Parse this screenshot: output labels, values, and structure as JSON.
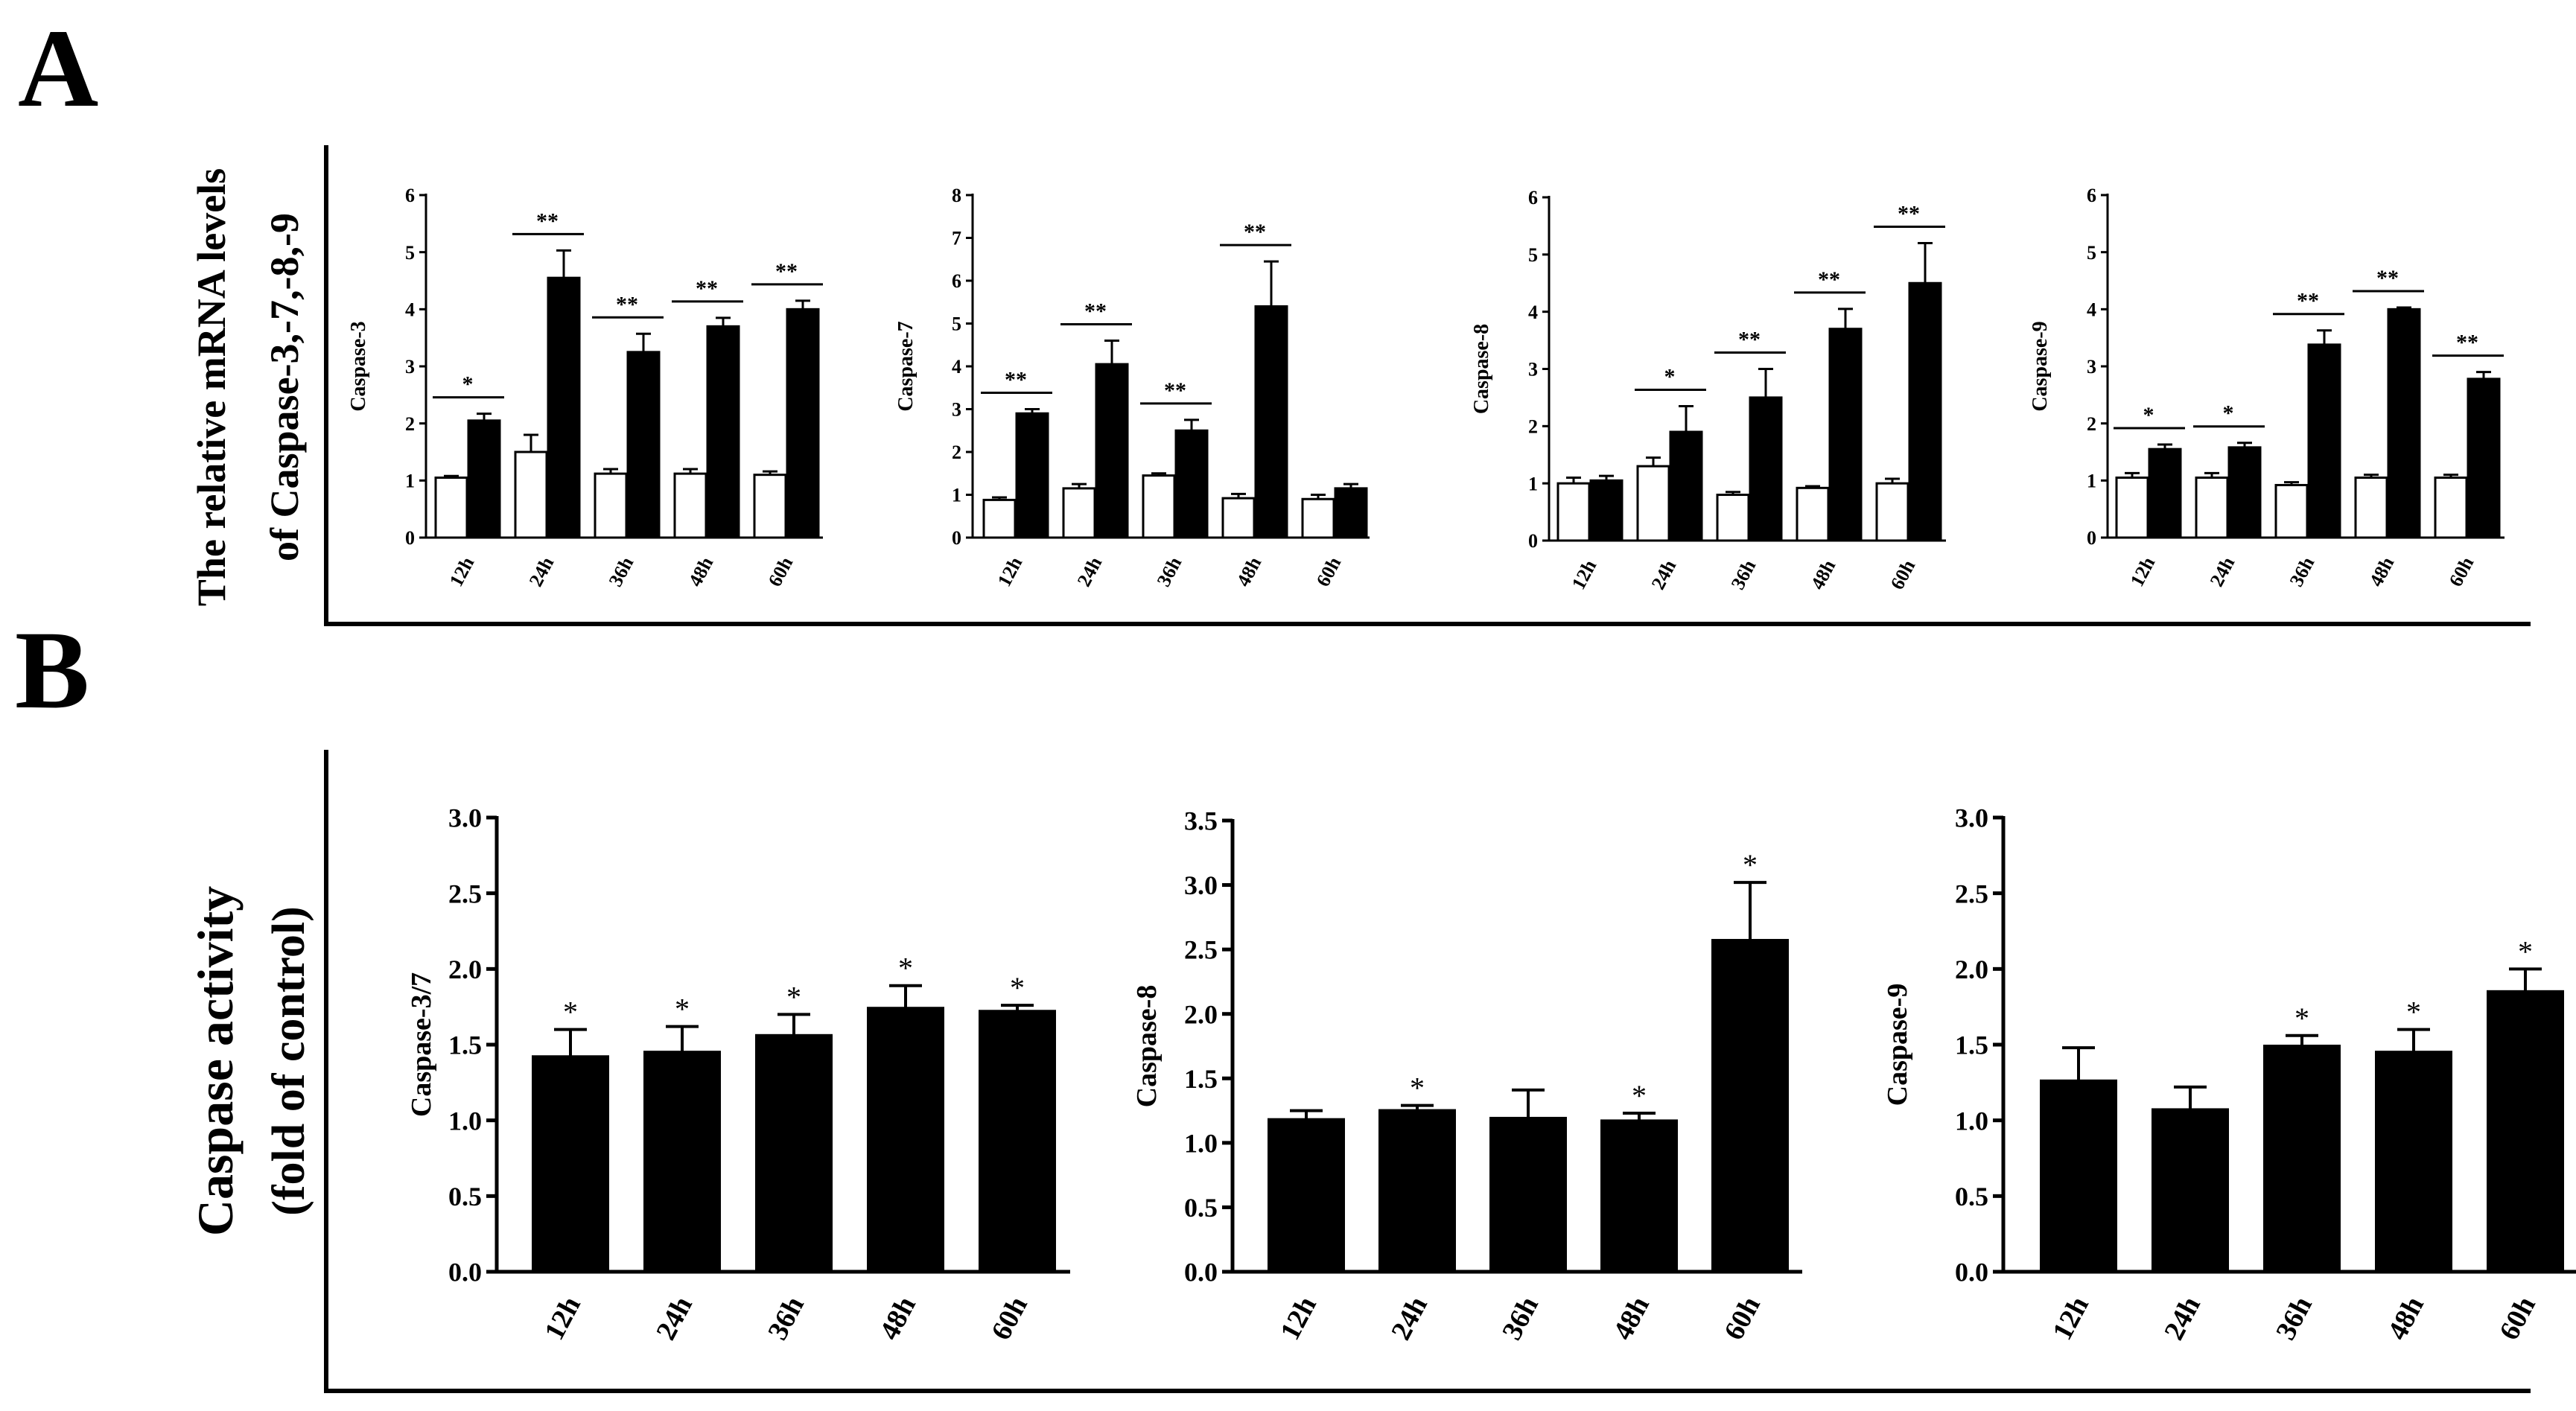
{
  "panels": {
    "a_letter": "A",
    "b_letter": "B",
    "a_ylabel_line1": "The relative mRNA levels",
    "a_ylabel_line2": "of Caspase-3,-7,-8,-9",
    "b_ylabel_line1": "Caspase activity",
    "b_ylabel_line2": "(fold of control)"
  },
  "colors": {
    "control": "#ffffff",
    "treated": "#000000",
    "axis": "#000000"
  },
  "chart_data": [
    {
      "type": "bar",
      "panel": "A",
      "ylabel": "Caspase-3",
      "categories": [
        "12h",
        "24h",
        "36h",
        "48h",
        "60h"
      ],
      "ylim": [
        0,
        6
      ],
      "yticks": [
        "0",
        "1",
        "2",
        "3",
        "4",
        "5",
        "6"
      ],
      "series": [
        {
          "values": [
            1.05,
            1.5,
            1.12,
            1.12,
            1.1
          ],
          "errors": [
            0.03,
            0.3,
            0.08,
            0.08,
            0.06
          ]
        },
        {
          "values": [
            2.05,
            4.55,
            3.25,
            3.7,
            4.0
          ],
          "errors": [
            0.12,
            0.48,
            0.32,
            0.15,
            0.15
          ]
        }
      ],
      "significance": [
        "*",
        "**",
        "**",
        "**",
        "**"
      ]
    },
    {
      "type": "bar",
      "panel": "A",
      "ylabel": "Caspase-7",
      "categories": [
        "12h",
        "24h",
        "36h",
        "48h",
        "60h"
      ],
      "ylim": [
        0,
        8
      ],
      "yticks": [
        "0",
        "1",
        "2",
        "3",
        "4",
        "5",
        "6",
        "7",
        "8"
      ],
      "series": [
        {
          "values": [
            0.88,
            1.15,
            1.45,
            0.92,
            0.9
          ],
          "errors": [
            0.06,
            0.1,
            0.05,
            0.1,
            0.1
          ]
        },
        {
          "values": [
            2.9,
            4.05,
            2.5,
            5.4,
            1.15
          ],
          "errors": [
            0.1,
            0.55,
            0.25,
            1.05,
            0.1
          ]
        }
      ],
      "significance": [
        "**",
        "**",
        "**",
        "**",
        ""
      ]
    },
    {
      "type": "bar",
      "panel": "A",
      "ylabel": "Caspase-8",
      "categories": [
        "12h",
        "24h",
        "36h",
        "48h",
        "60h"
      ],
      "ylim": [
        0,
        6
      ],
      "yticks": [
        "0",
        "1",
        "2",
        "3",
        "4",
        "5",
        "6"
      ],
      "series": [
        {
          "values": [
            1.0,
            1.3,
            0.8,
            0.92,
            1.0
          ],
          "errors": [
            0.1,
            0.15,
            0.05,
            0.03,
            0.08
          ]
        },
        {
          "values": [
            1.05,
            1.9,
            2.5,
            3.7,
            4.5
          ],
          "errors": [
            0.08,
            0.45,
            0.5,
            0.35,
            0.7
          ]
        }
      ],
      "significance": [
        "",
        "*",
        "**",
        "**",
        "**"
      ]
    },
    {
      "type": "bar",
      "panel": "A",
      "ylabel": "Caspase-9",
      "categories": [
        "12h",
        "24h",
        "36h",
        "48h",
        "60h"
      ],
      "ylim": [
        0,
        6
      ],
      "yticks": [
        "0",
        "1",
        "2",
        "3",
        "4",
        "5",
        "6"
      ],
      "series": [
        {
          "values": [
            1.05,
            1.05,
            0.92,
            1.05,
            1.05
          ],
          "errors": [
            0.08,
            0.08,
            0.05,
            0.05,
            0.05
          ]
        },
        {
          "values": [
            1.55,
            1.58,
            3.38,
            4.0,
            2.78
          ],
          "errors": [
            0.08,
            0.08,
            0.25,
            0.03,
            0.12
          ]
        }
      ],
      "significance": [
        "*",
        "*",
        "**",
        "**",
        "**"
      ]
    },
    {
      "type": "bar",
      "panel": "B",
      "ylabel": "Caspase-3/7",
      "categories": [
        "12h",
        "24h",
        "36h",
        "48h",
        "60h"
      ],
      "ylim": [
        0,
        3.0
      ],
      "yticks": [
        "0.0",
        "0.5",
        "1.0",
        "1.5",
        "2.0",
        "2.5",
        "3.0"
      ],
      "series": [
        {
          "values": [
            1.42,
            1.45,
            1.56,
            1.74,
            1.72
          ],
          "errors": [
            0.18,
            0.17,
            0.14,
            0.15,
            0.04
          ]
        }
      ],
      "significance": [
        "*",
        "*",
        "*",
        "*",
        "*"
      ]
    },
    {
      "type": "bar",
      "panel": "B",
      "ylabel": "Caspase-8",
      "categories": [
        "12h",
        "24h",
        "36h",
        "48h",
        "60h"
      ],
      "ylim": [
        0,
        3.5
      ],
      "yticks": [
        "0.0",
        "0.5",
        "1.0",
        "1.5",
        "2.0",
        "2.5",
        "3.0",
        "3.5"
      ],
      "series": [
        {
          "values": [
            1.18,
            1.25,
            1.19,
            1.17,
            2.57
          ],
          "errors": [
            0.07,
            0.04,
            0.22,
            0.06,
            0.45
          ]
        }
      ],
      "significance": [
        "",
        "*",
        "",
        "*",
        "*"
      ]
    },
    {
      "type": "bar",
      "panel": "B",
      "ylabel": "Caspase-9",
      "categories": [
        "12h",
        "24h",
        "36h",
        "48h",
        "60h"
      ],
      "ylim": [
        0,
        3.0
      ],
      "yticks": [
        "0.0",
        "0.5",
        "1.0",
        "1.5",
        "2.0",
        "2.5",
        "3.0"
      ],
      "series": [
        {
          "values": [
            1.26,
            1.07,
            1.49,
            1.45,
            1.85
          ],
          "errors": [
            0.22,
            0.15,
            0.07,
            0.15,
            0.15
          ]
        }
      ],
      "significance": [
        "",
        "",
        "*",
        "*",
        "*"
      ]
    }
  ]
}
